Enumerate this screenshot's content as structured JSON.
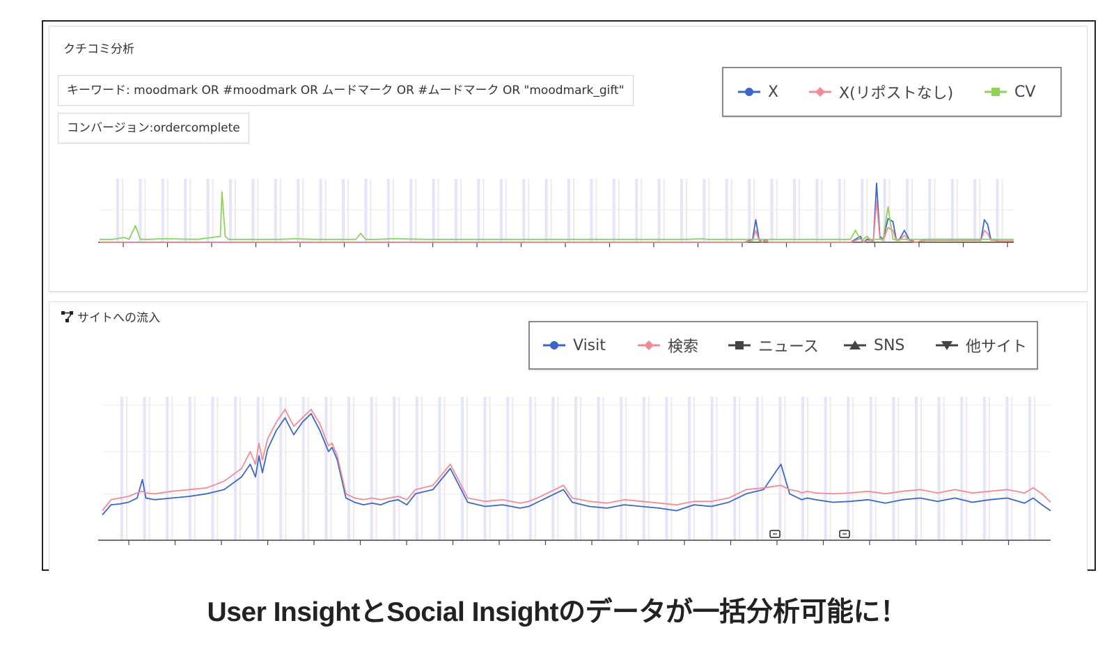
{
  "kuchikomi": {
    "title": "クチコミ分析",
    "keyword": "キーワード: moodmark OR #moodmark OR ムードマーク OR #ムードマーク OR \"moodmark_gift\"",
    "conversion": "コンバージョン:ordercomplete",
    "legend": [
      {
        "name": "X",
        "color": "#3b66c8",
        "marker": "circle"
      },
      {
        "name": "X(リポストなし)",
        "color": "#f28b93",
        "marker": "diamond"
      },
      {
        "name": "CV",
        "color": "#8fd15a",
        "marker": "square"
      }
    ]
  },
  "site_inflow": {
    "title": "サイトへの流入",
    "legend": [
      {
        "name": "Visit",
        "color": "#3b66c8",
        "marker": "circle"
      },
      {
        "name": "検索",
        "color": "#f28b93",
        "marker": "diamond"
      },
      {
        "name": "ニュース",
        "color": "#444444",
        "marker": "square"
      },
      {
        "name": "SNS",
        "color": "#444444",
        "marker": "triangle-up"
      },
      {
        "name": "他サイト",
        "color": "#444444",
        "marker": "triangle-down"
      }
    ]
  },
  "caption": "User InsightとSocial Insightのデータが一括分析可能に！",
  "chart_data": [
    {
      "type": "line",
      "x": [
        0,
        8,
        15,
        18,
        22,
        25,
        30,
        40,
        60,
        74,
        75,
        77,
        79,
        90,
        110,
        120,
        130,
        140,
        150,
        157,
        160,
        163,
        170,
        180,
        200,
        220,
        260,
        300,
        310,
        330,
        340,
        360,
        370,
        372,
        373,
        375,
        385,
        390,
        395,
        400,
        402,
        404,
        406,
        408,
        410,
        412,
        414,
        417,
        420,
        430,
        440,
        455,
        460,
        463,
        466,
        468,
        470,
        472,
        474,
        476,
        478,
        480,
        483,
        486,
        488,
        490,
        493,
        496,
        500,
        503,
        506,
        510,
        520,
        530,
        540,
        542,
        544,
        546,
        548,
        550,
        560
      ],
      "series": [
        {
          "name": "X",
          "values": [
            0,
            0,
            0,
            0,
            0,
            0,
            0,
            0,
            0,
            0,
            0,
            0,
            0,
            0,
            0,
            0,
            0,
            0,
            0,
            0,
            0,
            0,
            0,
            0,
            0,
            0,
            0,
            0,
            0,
            0,
            0,
            0,
            0,
            0,
            0,
            0,
            0,
            0,
            0,
            0.05,
            0.38,
            0.05,
            0,
            0.05,
            0,
            0,
            0,
            0,
            0,
            0,
            0,
            0,
            0,
            0.05,
            0.1,
            0,
            0.05,
            0.05,
            0.02,
            1.0,
            0.1,
            0.05,
            0.4,
            0.35,
            0.05,
            0.05,
            0.2,
            0.05,
            0,
            0.02,
            0.05,
            0.05,
            0.05,
            0.05,
            0.05,
            0.38,
            0.3,
            0.05,
            0.05,
            0.02,
            0.02
          ]
        },
        {
          "name": "X(リポストなし)",
          "values": [
            0,
            0,
            0,
            0,
            0,
            0,
            0,
            0,
            0,
            0,
            0,
            0,
            0,
            0,
            0,
            0,
            0,
            0,
            0,
            0,
            0,
            0,
            0,
            0,
            0,
            0,
            0,
            0,
            0,
            0,
            0,
            0,
            0,
            0,
            0,
            0,
            0,
            0,
            0,
            0.03,
            0.2,
            0.03,
            0,
            0.03,
            0,
            0,
            0,
            0,
            0,
            0,
            0,
            0,
            0,
            0.03,
            0.06,
            0,
            0.03,
            0.03,
            0.02,
            0.7,
            0.06,
            0.03,
            0.25,
            0.2,
            0.03,
            0.03,
            0.12,
            0.03,
            0,
            0.02,
            0.03,
            0.03,
            0.03,
            0.03,
            0.03,
            0.2,
            0.15,
            0.03,
            0.03,
            0.02,
            0.02
          ]
        },
        {
          "name": "CV",
          "values": [
            0.05,
            0.05,
            0.08,
            0.05,
            0.28,
            0.05,
            0.05,
            0.06,
            0.05,
            0.1,
            0.85,
            0.1,
            0.05,
            0.05,
            0.05,
            0.06,
            0.05,
            0.05,
            0.05,
            0.05,
            0.15,
            0.05,
            0.05,
            0.06,
            0.05,
            0.05,
            0.05,
            0.05,
            0.05,
            0.05,
            0.05,
            0.05,
            0.06,
            0.05,
            0.05,
            0.05,
            0.05,
            0.05,
            0.05,
            0.05,
            0.05,
            0.05,
            0.05,
            0.05,
            0.05,
            0.05,
            0.05,
            0.05,
            0.05,
            0.05,
            0.05,
            0.05,
            0.05,
            0.2,
            0.05,
            0.05,
            0.1,
            0.05,
            0.05,
            0.05,
            0.05,
            0.05,
            0.6,
            0.05,
            0.05,
            0.05,
            0.05,
            0.05,
            0.05,
            0.05,
            0.05,
            0.05,
            0.05,
            0.05,
            0.05,
            0.05,
            0.05,
            0.05,
            0.05,
            0.05,
            0.05
          ]
        }
      ]
    },
    {
      "type": "line",
      "x": [
        0,
        5,
        10,
        15,
        20,
        23,
        25,
        30,
        40,
        50,
        60,
        70,
        80,
        85,
        88,
        90,
        92,
        95,
        100,
        105,
        110,
        115,
        120,
        125,
        128,
        130,
        132,
        135,
        140,
        145,
        150,
        155,
        160,
        165,
        170,
        175,
        180,
        190,
        200,
        210,
        220,
        230,
        235,
        240,
        245,
        250,
        255,
        260,
        265,
        270,
        280,
        290,
        300,
        310,
        320,
        330,
        340,
        350,
        360,
        370,
        380,
        390,
        395,
        400,
        402,
        405,
        410,
        420,
        430,
        440,
        450,
        460,
        470,
        480,
        490,
        500,
        510,
        520,
        530,
        535,
        540,
        545
      ],
      "series": [
        {
          "name": "Visit",
          "values": [
            0.3,
            0.42,
            0.43,
            0.45,
            0.5,
            0.72,
            0.5,
            0.48,
            0.5,
            0.52,
            0.55,
            0.6,
            0.75,
            0.9,
            0.75,
            1.0,
            0.8,
            1.08,
            1.3,
            1.45,
            1.25,
            1.4,
            1.5,
            1.3,
            1.15,
            1.05,
            1.1,
            0.95,
            0.5,
            0.45,
            0.42,
            0.44,
            0.42,
            0.46,
            0.48,
            0.42,
            0.55,
            0.6,
            0.85,
            0.45,
            0.4,
            0.42,
            0.4,
            0.38,
            0.4,
            0.45,
            0.5,
            0.55,
            0.6,
            0.45,
            0.4,
            0.38,
            0.42,
            0.4,
            0.38,
            0.35,
            0.42,
            0.4,
            0.45,
            0.55,
            0.6,
            0.9,
            0.55,
            0.5,
            0.48,
            0.5,
            0.48,
            0.45,
            0.46,
            0.48,
            0.44,
            0.48,
            0.5,
            0.46,
            0.5,
            0.45,
            0.48,
            0.5,
            0.44,
            0.5,
            0.42,
            0.35
          ]
        },
        {
          "name": "検索",
          "values": [
            0.35,
            0.48,
            0.5,
            0.52,
            0.56,
            0.58,
            0.56,
            0.55,
            0.58,
            0.6,
            0.62,
            0.7,
            0.85,
            1.05,
            0.9,
            1.15,
            0.95,
            1.2,
            1.4,
            1.55,
            1.35,
            1.45,
            1.55,
            1.38,
            1.22,
            1.12,
            1.15,
            1.0,
            0.55,
            0.5,
            0.48,
            0.5,
            0.48,
            0.5,
            0.52,
            0.48,
            0.6,
            0.65,
            0.9,
            0.5,
            0.46,
            0.48,
            0.46,
            0.44,
            0.46,
            0.5,
            0.55,
            0.6,
            0.65,
            0.5,
            0.46,
            0.44,
            0.48,
            0.46,
            0.44,
            0.42,
            0.46,
            0.46,
            0.5,
            0.6,
            0.62,
            0.65,
            0.6,
            0.58,
            0.56,
            0.58,
            0.56,
            0.55,
            0.56,
            0.58,
            0.55,
            0.58,
            0.6,
            0.56,
            0.6,
            0.56,
            0.58,
            0.6,
            0.56,
            0.62,
            0.55,
            0.45
          ]
        }
      ]
    }
  ]
}
